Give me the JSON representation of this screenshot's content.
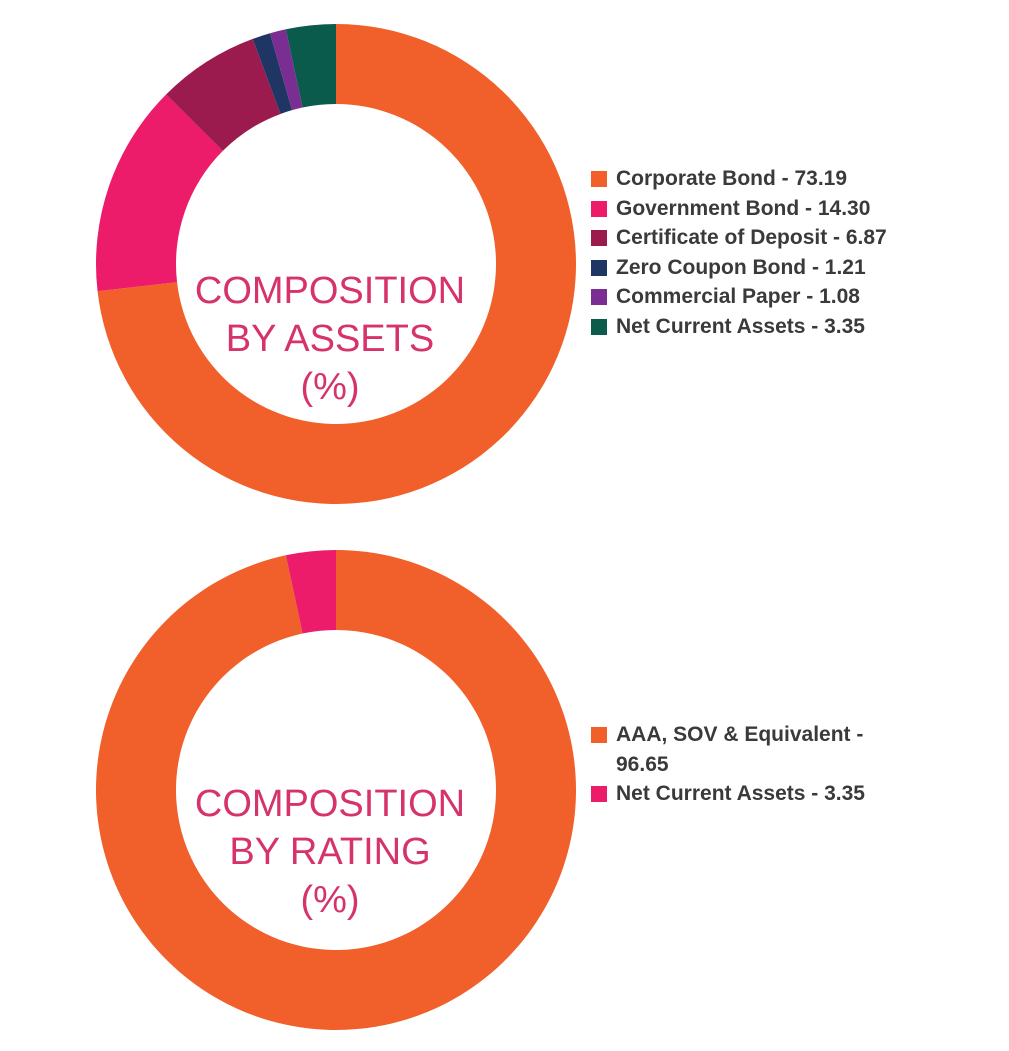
{
  "chart_data": [
    {
      "type": "pie",
      "donut": true,
      "center_label": [
        "COMPOSITION",
        "BY ASSETS",
        "(%)"
      ],
      "categories": [
        "Corporate Bond",
        "Government Bond",
        "Certificate of Deposit",
        "Zero Coupon Bond",
        "Commercial Paper",
        "Net Current Assets"
      ],
      "values": [
        73.19,
        14.3,
        6.87,
        1.21,
        1.08,
        3.35
      ],
      "colors": [
        "#f15f2a",
        "#ec1c6b",
        "#9b1b4e",
        "#1f3664",
        "#7a2e91",
        "#0a5b4c"
      ],
      "legend_labels": [
        "Corporate Bond - 73.19",
        "Government Bond - 14.30",
        "Certificate of Deposit - 6.87",
        "Zero Coupon Bond - 1.21",
        "Commercial Paper - 1.08",
        "Net Current Assets - 3.35"
      ],
      "legend_position": "right"
    },
    {
      "type": "pie",
      "donut": true,
      "center_label": [
        "COMPOSITION",
        "BY RATING",
        "(%)"
      ],
      "categories": [
        "AAA, SOV & Equivalent",
        "Net Current Assets"
      ],
      "values": [
        96.65,
        3.35
      ],
      "colors": [
        "#f15f2a",
        "#ec1c6b"
      ],
      "legend_labels": [
        "AAA, SOV & Equivalent - 96.65",
        "Net Current Assets - 3.35"
      ],
      "legend_position": "right"
    }
  ]
}
